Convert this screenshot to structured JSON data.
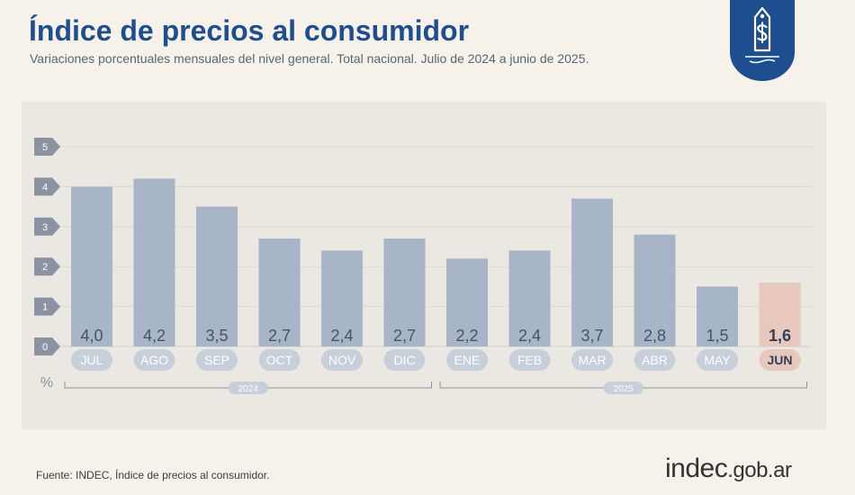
{
  "header": {
    "title": "Índice de precios al consumidor",
    "subtitle": "Variaciones porcentuales mensuales del nivel general. Total nacional. Julio de 2024 a junio de 2025."
  },
  "footer": {
    "source": "Fuente: INDEC, Índice de precios al consumidor.",
    "logo_main": "indec",
    "logo_suffix": ".gob.ar"
  },
  "icons": {
    "badge": "price-tag-dollar-icon"
  },
  "colors": {
    "bar": "#a8b4c8",
    "bar_highlight": "#e8c8bc",
    "title": "#1d4e8f",
    "badge": "#1d4e8f"
  },
  "chart_data": {
    "type": "bar",
    "categories": [
      "JUL",
      "AGO",
      "SEP",
      "OCT",
      "NOV",
      "DIC",
      "ENE",
      "FEB",
      "MAR",
      "ABR",
      "MAY",
      "JUN"
    ],
    "values": [
      4.0,
      4.2,
      3.5,
      2.7,
      2.4,
      2.7,
      2.2,
      2.4,
      3.7,
      2.8,
      1.5,
      1.6
    ],
    "value_labels": [
      "4,0",
      "4,2",
      "3,5",
      "2,7",
      "2,4",
      "2,7",
      "2,2",
      "2,4",
      "3,7",
      "2,8",
      "1,5",
      "1,6"
    ],
    "highlight_index": 11,
    "y_ticks": [
      "0",
      "1",
      "2",
      "3",
      "4",
      "5"
    ],
    "ylim": [
      0,
      5
    ],
    "ylabel": "%",
    "year_groups": [
      {
        "label": "2024",
        "from": 0,
        "to": 5
      },
      {
        "label": "2025",
        "from": 6,
        "to": 11
      }
    ],
    "grid": true
  }
}
